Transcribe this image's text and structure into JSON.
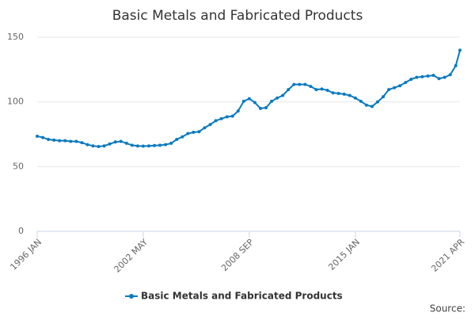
{
  "chart_data": {
    "type": "line",
    "title": "Basic Metals and Fabricated Products",
    "x": [
      "1996-01",
      "1996-05",
      "1996-09",
      "1997-01",
      "1997-05",
      "1997-09",
      "1998-01",
      "1998-05",
      "1998-09",
      "1999-01",
      "1999-05",
      "1999-09",
      "2000-01",
      "2000-05",
      "2000-09",
      "2001-01",
      "2001-05",
      "2001-09",
      "2002-01",
      "2002-05",
      "2002-09",
      "2003-01",
      "2003-05",
      "2003-09",
      "2004-01",
      "2004-05",
      "2004-09",
      "2005-01",
      "2005-05",
      "2005-09",
      "2006-01",
      "2006-05",
      "2006-09",
      "2007-01",
      "2007-05",
      "2007-09",
      "2008-01",
      "2008-05",
      "2008-09",
      "2009-01",
      "2009-05",
      "2009-09",
      "2010-01",
      "2010-05",
      "2010-09",
      "2011-01",
      "2011-05",
      "2011-09",
      "2012-01",
      "2012-05",
      "2012-09",
      "2013-01",
      "2013-05",
      "2013-09",
      "2014-01",
      "2014-05",
      "2014-09",
      "2015-01",
      "2015-05",
      "2015-09",
      "2016-01",
      "2016-05",
      "2016-09",
      "2017-01",
      "2017-05",
      "2017-09",
      "2018-01",
      "2018-05",
      "2018-09",
      "2019-01",
      "2019-05",
      "2019-09",
      "2020-01",
      "2020-05",
      "2020-09",
      "2021-01",
      "2021-04"
    ],
    "series": [
      {
        "name": "Basic Metals and Fabricated Products",
        "color": "#0a7abf",
        "values": [
          73.5,
          72.5,
          71,
          70.5,
          70,
          70,
          69.5,
          69.5,
          68.5,
          67,
          66,
          65.5,
          66,
          67.5,
          69,
          69.5,
          68,
          66.5,
          66,
          65.8,
          66,
          66.3,
          66.5,
          67,
          68,
          71,
          73,
          75.5,
          76.5,
          77,
          80,
          82.5,
          85.5,
          87,
          88.5,
          89,
          93,
          100.5,
          102.5,
          99.5,
          95,
          95.5,
          100.5,
          103,
          105,
          109.5,
          113.5,
          113.5,
          113.5,
          112,
          109.5,
          110,
          109,
          107,
          106.5,
          106,
          105,
          103,
          100.5,
          97.5,
          96.5,
          100,
          104,
          109.5,
          111,
          112.5,
          115,
          117.5,
          119,
          119.5,
          120,
          120.5,
          118,
          119,
          121,
          128,
          140
        ]
      }
    ],
    "xlim": [
      "1996-01",
      "2021-04"
    ],
    "xticks": [
      {
        "value": "1996-01",
        "label": "1996 JAN"
      },
      {
        "value": "2002-05",
        "label": "2002 MAY"
      },
      {
        "value": "2008-09",
        "label": "2008 SEP"
      },
      {
        "value": "2015-01",
        "label": "2015 JAN"
      },
      {
        "value": "2021-04",
        "label": "2021 APR"
      }
    ],
    "ylim": [
      0,
      150
    ],
    "yticks": [
      0,
      50,
      100,
      150
    ],
    "grid": true,
    "legend": "bottom",
    "source": "Source:"
  }
}
